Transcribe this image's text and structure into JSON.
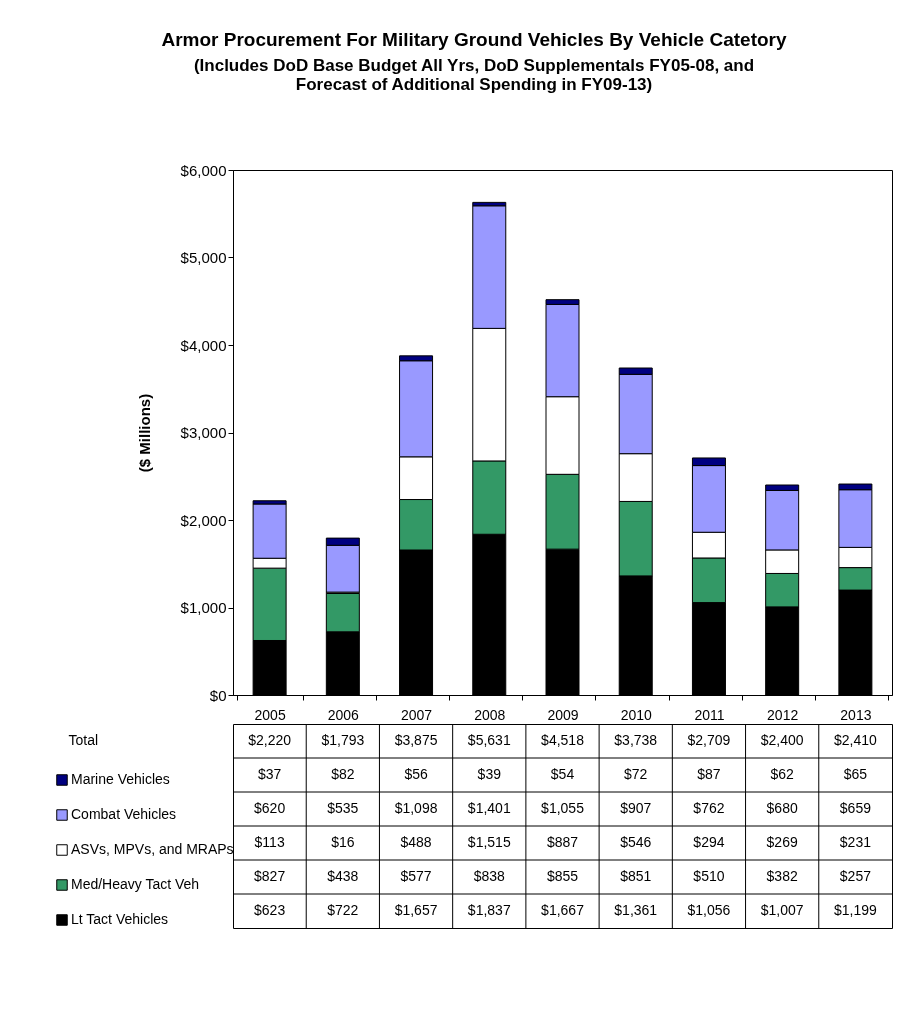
{
  "chart_data": {
    "type": "bar",
    "stacked": true,
    "title": "Armor Procurement For Military Ground Vehicles By Vehicle Catetory",
    "subtitle": "(Includes DoD Base Budget All Yrs, DoD Supplementals FY05-08, and Forecast of Additional Spending in FY09-13)",
    "ylabel": "($ Millions)",
    "categories": [
      "2005",
      "2006",
      "2007",
      "2008",
      "2009",
      "2010",
      "2011",
      "2012",
      "2013"
    ],
    "series": [
      {
        "name": "Lt Tact Vehicles",
        "color": "#000000",
        "values": [
          623,
          722,
          1657,
          1837,
          1667,
          1361,
          1056,
          1007,
          1199
        ],
        "value_labels": [
          "$623",
          "$722",
          "$1,657",
          "$1,837",
          "$1,667",
          "$1,361",
          "$1,056",
          "$1,007",
          "$1,199"
        ]
      },
      {
        "name": "Med/Heavy Tact Veh",
        "color": "#339966",
        "values": [
          827,
          438,
          577,
          838,
          855,
          851,
          510,
          382,
          257
        ],
        "value_labels": [
          "$827",
          "$438",
          "$577",
          "$838",
          "$855",
          "$851",
          "$510",
          "$382",
          "$257"
        ]
      },
      {
        "name": "ASVs, MPVs, and MRAPs",
        "color": "#ffffff",
        "values": [
          113,
          16,
          488,
          1515,
          887,
          546,
          294,
          269,
          231
        ],
        "value_labels": [
          "$113",
          "$16",
          "$488",
          "$1,515",
          "$887",
          "$546",
          "$294",
          "$269",
          "$231"
        ]
      },
      {
        "name": "Combat Vehicles",
        "color": "#9999ff",
        "values": [
          620,
          535,
          1098,
          1401,
          1055,
          907,
          762,
          680,
          659
        ],
        "value_labels": [
          "$620",
          "$535",
          "$1,098",
          "$1,401",
          "$1,055",
          "$907",
          "$762",
          "$680",
          "$659"
        ]
      },
      {
        "name": "Marine Vehicles",
        "color": "#000080",
        "values": [
          37,
          82,
          56,
          39,
          54,
          72,
          87,
          62,
          65
        ],
        "value_labels": [
          "$37",
          "$82",
          "$56",
          "$39",
          "$54",
          "$72",
          "$87",
          "$62",
          "$65"
        ]
      }
    ],
    "totals": [
      "$2,220",
      "$1,793",
      "$3,875",
      "$5,631",
      "$4,518",
      "$3,738",
      "$2,709",
      "$2,400",
      "$2,410"
    ],
    "annotations": [
      "Total"
    ],
    "ylim": [
      0,
      6000
    ],
    "yticks": [
      {
        "value": 0,
        "label": "$0"
      },
      {
        "value": 1000,
        "label": "$1,000"
      },
      {
        "value": 2000,
        "label": "$2,000"
      },
      {
        "value": 3000,
        "label": "$3,000"
      },
      {
        "value": 4000,
        "label": "$4,000"
      },
      {
        "value": 5000,
        "label": "$5,000"
      },
      {
        "value": 6000,
        "label": "$6,000"
      }
    ],
    "grid": false,
    "legend": "bottom left"
  }
}
